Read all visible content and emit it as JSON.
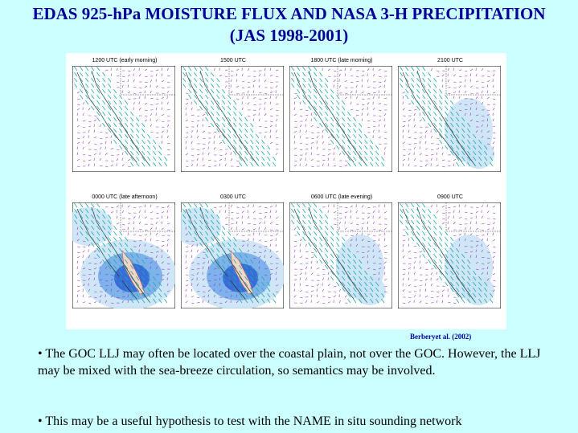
{
  "title": {
    "line1": "EDAS 925-hPa MOISTURE FLUX AND NASA 3-H PRECIPITATION",
    "line2": "(JAS 1998-2001)"
  },
  "panels": [
    {
      "label": "1200 UTC (early morning)",
      "precip": "none"
    },
    {
      "label": "1500 UTC",
      "precip": "none"
    },
    {
      "label": "1800 UTC (late morning)",
      "precip": "none"
    },
    {
      "label": "2100 UTC",
      "precip": "weak"
    },
    {
      "label": "0000 UTC (late afternoon)",
      "precip": "strong"
    },
    {
      "label": "0300 UTC",
      "precip": "strong"
    },
    {
      "label": "0600 UTC (late evening)",
      "precip": "weak"
    },
    {
      "label": "0900 UTC",
      "precip": "weak"
    }
  ],
  "credit": "Berberyet al. (2002)",
  "bullets": [
    "• The GOC LLJ may often be located over the coastal plain, not over the GOC. However, the LLJ may be mixed with the sea-breeze circulation, so semantics may be involved.",
    "• This may be a useful hypothesis to test with the NAME in situ sounding network"
  ],
  "colors": {
    "title": "#000099",
    "background": "#ccffff",
    "vector_teal": "#22aaaa",
    "vector_purple": "#9933cc",
    "precip_light": "#c6e2f5",
    "precip_mid": "#6fa8e8",
    "precip_dark": "#2b5fd6"
  }
}
